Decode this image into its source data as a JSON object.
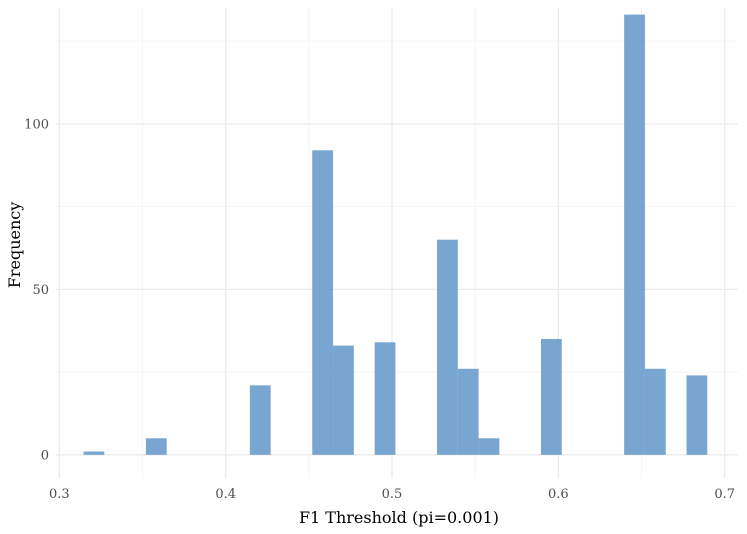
{
  "chart_data": {
    "type": "bar",
    "subtype": "histogram",
    "xlabel": "F1 Threshold (pi=0.001)",
    "ylabel": "Frequency",
    "xlim": [
      0.298,
      0.708
    ],
    "ylim": [
      -7,
      135
    ],
    "x_ticks": [
      0.3,
      0.4,
      0.5,
      0.6,
      0.7
    ],
    "x_tick_labels": [
      "0.3",
      "0.4",
      "0.5",
      "0.6",
      "0.7"
    ],
    "y_ticks": [
      0,
      50,
      100
    ],
    "y_tick_labels": [
      "0",
      "50",
      "100"
    ],
    "bin_width": 0.0125,
    "bins": [
      {
        "x": 0.3208,
        "count": 1
      },
      {
        "x": 0.3583,
        "count": 5
      },
      {
        "x": 0.4208,
        "count": 21
      },
      {
        "x": 0.4583,
        "count": 92
      },
      {
        "x": 0.4708,
        "count": 33
      },
      {
        "x": 0.4958,
        "count": 34
      },
      {
        "x": 0.5333,
        "count": 65
      },
      {
        "x": 0.5458,
        "count": 26
      },
      {
        "x": 0.5583,
        "count": 5
      },
      {
        "x": 0.5958,
        "count": 35
      },
      {
        "x": 0.6458,
        "count": 133
      },
      {
        "x": 0.6583,
        "count": 26
      },
      {
        "x": 0.6833,
        "count": 24
      }
    ],
    "grid": true,
    "colors": {
      "bar": "#6a9ccb",
      "grid": "#ebebeb",
      "background": "#ffffff"
    }
  }
}
